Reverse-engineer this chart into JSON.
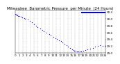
{
  "title": "Milwaukee  Barometric Pressure  per Minute  (24 Hours)",
  "bg_color": "#ffffff",
  "plot_bg_color": "#ffffff",
  "grid_color": "#aaaaaa",
  "dot_color": "#0000ff",
  "highlight_color": "#0000ff",
  "xlim": [
    0,
    1440
  ],
  "ylim": [
    29.0,
    30.25
  ],
  "yticks": [
    29.0,
    29.2,
    29.4,
    29.6,
    29.8,
    30.0,
    30.2
  ],
  "ytick_labels": [
    "29.0",
    "29.2",
    "29.4",
    "29.6",
    "29.8",
    "30.0",
    "30.2"
  ],
  "xtick_positions": [
    0,
    60,
    120,
    180,
    240,
    300,
    360,
    420,
    480,
    540,
    600,
    660,
    720,
    780,
    840,
    900,
    960,
    1020,
    1080,
    1140,
    1200,
    1260,
    1320,
    1380,
    1440
  ],
  "xtick_labels": [
    "0",
    "1",
    "2",
    "3",
    "4",
    "5",
    "6",
    "7",
    "8",
    "9",
    "10",
    "11",
    "12",
    "13",
    "14",
    "15",
    "16",
    "17",
    "18",
    "19",
    "20",
    "21",
    "22",
    "23",
    "24"
  ],
  "pressure_data": [
    [
      0,
      30.15
    ],
    [
      10,
      30.14
    ],
    [
      20,
      30.13
    ],
    [
      30,
      30.12
    ],
    [
      50,
      30.1
    ],
    [
      70,
      30.09
    ],
    [
      90,
      30.08
    ],
    [
      110,
      30.06
    ],
    [
      140,
      30.03
    ],
    [
      160,
      30.01
    ],
    [
      200,
      29.98
    ],
    [
      230,
      29.95
    ],
    [
      270,
      29.9
    ],
    [
      300,
      29.85
    ],
    [
      330,
      29.8
    ],
    [
      360,
      29.76
    ],
    [
      400,
      29.72
    ],
    [
      430,
      29.68
    ],
    [
      460,
      29.64
    ],
    [
      500,
      29.6
    ],
    [
      540,
      29.56
    ],
    [
      570,
      29.52
    ],
    [
      610,
      29.47
    ],
    [
      640,
      29.44
    ],
    [
      670,
      29.41
    ],
    [
      700,
      29.38
    ],
    [
      730,
      29.35
    ],
    [
      760,
      29.31
    ],
    [
      790,
      29.27
    ],
    [
      820,
      29.23
    ],
    [
      850,
      29.19
    ],
    [
      880,
      29.15
    ],
    [
      910,
      29.11
    ],
    [
      930,
      29.09
    ],
    [
      950,
      29.07
    ],
    [
      970,
      29.06
    ],
    [
      990,
      29.05
    ],
    [
      1010,
      29.04
    ],
    [
      1030,
      29.04
    ],
    [
      1060,
      29.05
    ],
    [
      1090,
      29.06
    ],
    [
      1120,
      29.08
    ],
    [
      1160,
      29.1
    ],
    [
      1200,
      29.12
    ],
    [
      1240,
      29.15
    ],
    [
      1280,
      29.18
    ],
    [
      1320,
      29.2
    ],
    [
      1360,
      29.22
    ],
    [
      1400,
      29.21
    ],
    [
      1440,
      29.2
    ]
  ],
  "highlight_xstart": 1060,
  "highlight_xend": 1440,
  "highlight_ytop": 30.22,
  "highlight_ybot": 30.18,
  "title_fontsize": 4,
  "tick_fontsize": 3,
  "dot_size": 0.8,
  "vgrid_positions": [
    60,
    120,
    180,
    240,
    300,
    360,
    420,
    480,
    540,
    600,
    660,
    720,
    780,
    840,
    900,
    960,
    1020,
    1080,
    1140,
    1200,
    1260,
    1320,
    1380
  ]
}
